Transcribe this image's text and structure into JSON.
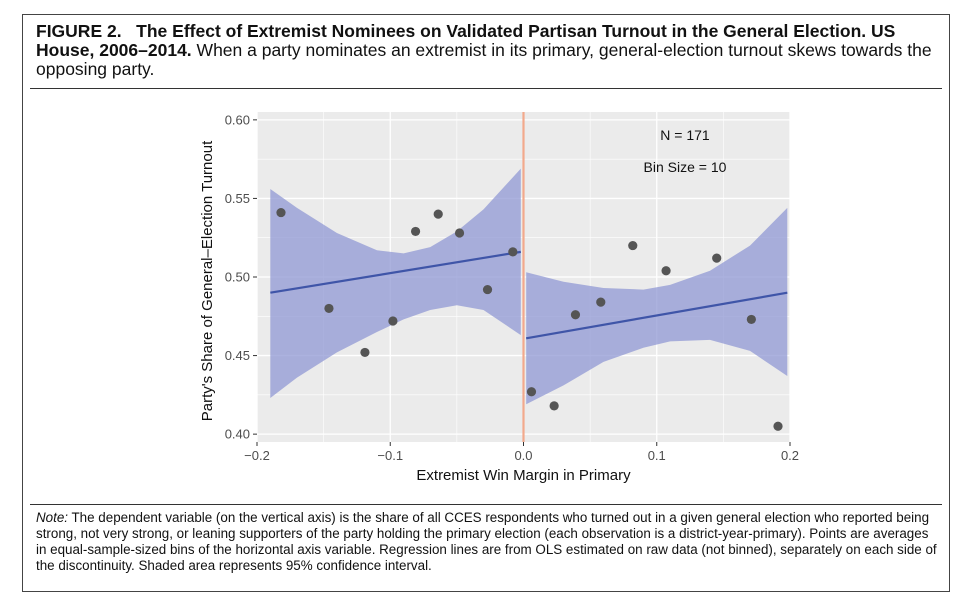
{
  "figure": {
    "label": "FIGURE 2.",
    "title": "The Effect of Extremist Nominees on Validated Partisan Turnout in the General Election. US House, 2006–2014.",
    "subtitle": "When a party nominates an extremist in its primary, general-election turnout skews towards the opposing party."
  },
  "note": {
    "label": "Note:",
    "text": "The dependent variable (on the vertical axis) is the share of all CCES respondents who turned out in a given general election who reported being strong, not very strong, or leaning supporters of the party holding the primary election (each observation is a district-year-primary). Points are averages in equal-sample-sized bins of the horizontal axis variable. Regression lines are from OLS estimated on raw data (not binned), separately on each side of the discontinuity. Shaded area represents 95% confidence interval."
  },
  "chart_data": {
    "type": "scatter",
    "xlabel": "Extremist Win Margin in Primary",
    "ylabel": "Party's Share of General–Election Turnout",
    "xlim": [
      -0.2,
      0.2
    ],
    "ylim": [
      0.395,
      0.605
    ],
    "xticks": [
      -0.2,
      -0.1,
      0.0,
      0.1,
      0.2
    ],
    "xtick_labels": [
      "−0.2",
      "−0.1",
      "0.0",
      "0.1",
      "0.2"
    ],
    "yticks": [
      0.4,
      0.45,
      0.5,
      0.55,
      0.6
    ],
    "ytick_labels": [
      "0.40",
      "0.45",
      "0.50",
      "0.55",
      "0.60"
    ],
    "grid": true,
    "cutoff": 0.0,
    "annotations": [
      "N = 171",
      "Bin Size = 10"
    ],
    "points": [
      {
        "x": -0.182,
        "y": 0.541
      },
      {
        "x": -0.146,
        "y": 0.48
      },
      {
        "x": -0.119,
        "y": 0.452
      },
      {
        "x": -0.098,
        "y": 0.472
      },
      {
        "x": -0.081,
        "y": 0.529
      },
      {
        "x": -0.064,
        "y": 0.54
      },
      {
        "x": -0.048,
        "y": 0.528
      },
      {
        "x": -0.027,
        "y": 0.492
      },
      {
        "x": -0.008,
        "y": 0.516
      },
      {
        "x": 0.006,
        "y": 0.427
      },
      {
        "x": 0.023,
        "y": 0.418
      },
      {
        "x": 0.039,
        "y": 0.476
      },
      {
        "x": 0.058,
        "y": 0.484
      },
      {
        "x": 0.082,
        "y": 0.52
      },
      {
        "x": 0.107,
        "y": 0.504
      },
      {
        "x": 0.145,
        "y": 0.512
      },
      {
        "x": 0.171,
        "y": 0.473
      },
      {
        "x": 0.191,
        "y": 0.405
      }
    ],
    "fits": [
      {
        "side": "left",
        "line": [
          {
            "x": -0.19,
            "y": 0.49
          },
          {
            "x": -0.002,
            "y": 0.516
          }
        ],
        "ci_upper": [
          {
            "x": -0.19,
            "y": 0.556
          },
          {
            "x": -0.17,
            "y": 0.544
          },
          {
            "x": -0.14,
            "y": 0.528
          },
          {
            "x": -0.11,
            "y": 0.517
          },
          {
            "x": -0.09,
            "y": 0.515
          },
          {
            "x": -0.07,
            "y": 0.519
          },
          {
            "x": -0.05,
            "y": 0.529
          },
          {
            "x": -0.03,
            "y": 0.543
          },
          {
            "x": -0.002,
            "y": 0.569
          }
        ],
        "ci_lower": [
          {
            "x": -0.19,
            "y": 0.423
          },
          {
            "x": -0.17,
            "y": 0.436
          },
          {
            "x": -0.14,
            "y": 0.452
          },
          {
            "x": -0.11,
            "y": 0.465
          },
          {
            "x": -0.09,
            "y": 0.473
          },
          {
            "x": -0.07,
            "y": 0.479
          },
          {
            "x": -0.05,
            "y": 0.482
          },
          {
            "x": -0.03,
            "y": 0.479
          },
          {
            "x": -0.002,
            "y": 0.463
          }
        ]
      },
      {
        "side": "right",
        "line": [
          {
            "x": 0.002,
            "y": 0.461
          },
          {
            "x": 0.198,
            "y": 0.49
          }
        ],
        "ci_upper": [
          {
            "x": 0.002,
            "y": 0.503
          },
          {
            "x": 0.03,
            "y": 0.497
          },
          {
            "x": 0.06,
            "y": 0.493
          },
          {
            "x": 0.09,
            "y": 0.492
          },
          {
            "x": 0.11,
            "y": 0.495
          },
          {
            "x": 0.14,
            "y": 0.504
          },
          {
            "x": 0.17,
            "y": 0.52
          },
          {
            "x": 0.198,
            "y": 0.544
          }
        ],
        "ci_lower": [
          {
            "x": 0.002,
            "y": 0.419
          },
          {
            "x": 0.03,
            "y": 0.431
          },
          {
            "x": 0.06,
            "y": 0.446
          },
          {
            "x": 0.09,
            "y": 0.455
          },
          {
            "x": 0.11,
            "y": 0.459
          },
          {
            "x": 0.14,
            "y": 0.46
          },
          {
            "x": 0.17,
            "y": 0.453
          },
          {
            "x": 0.198,
            "y": 0.437
          }
        ]
      }
    ],
    "colors": {
      "panel": "#ebebeb",
      "grid": "#ffffff",
      "ribbon": "#8c94d2",
      "line": "#3f55a8",
      "point": "#555555",
      "cutoff": "#f2a98c"
    }
  }
}
